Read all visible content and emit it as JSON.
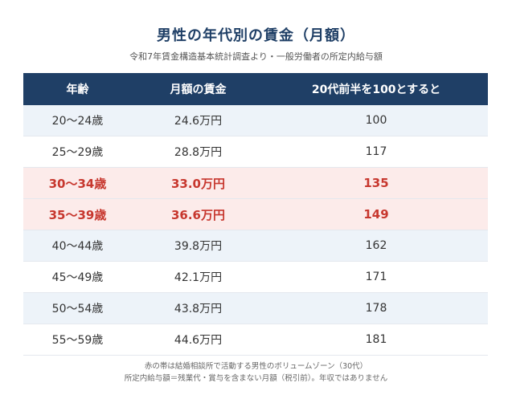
{
  "title": "男性の年代別の賃金（月額）",
  "subtitle": "令和7年賃金構造基本統計調査より・一般労働者の所定内給与額",
  "table": {
    "headers": [
      "年齢",
      "月額の賃金",
      "20代前半を100とすると"
    ],
    "rows": [
      {
        "age": "20〜24歳",
        "wage": "24.6万円",
        "index": "100",
        "highlight": false
      },
      {
        "age": "25〜29歳",
        "wage": "28.8万円",
        "index": "117",
        "highlight": false
      },
      {
        "age": "30〜34歳",
        "wage": "33.0万円",
        "index": "135",
        "highlight": true
      },
      {
        "age": "35〜39歳",
        "wage": "36.6万円",
        "index": "149",
        "highlight": true
      },
      {
        "age": "40〜44歳",
        "wage": "39.8万円",
        "index": "162",
        "highlight": false
      },
      {
        "age": "45〜49歳",
        "wage": "42.1万円",
        "index": "171",
        "highlight": false
      },
      {
        "age": "50〜54歳",
        "wage": "43.8万円",
        "index": "178",
        "highlight": false
      },
      {
        "age": "55〜59歳",
        "wage": "44.6万円",
        "index": "181",
        "highlight": false
      }
    ]
  },
  "notes": [
    "赤の帯は結婚相談所で活動する男性のボリュームゾーン（30代）",
    "所定内給与額＝残業代・賞与を含まない月額（税引前）。年収ではありません"
  ],
  "colors": {
    "header_bg": "#1f3f66",
    "highlight_text": "#c7372e",
    "highlight_bg": "#fcebea",
    "shade_bg": "#edf3f9"
  }
}
